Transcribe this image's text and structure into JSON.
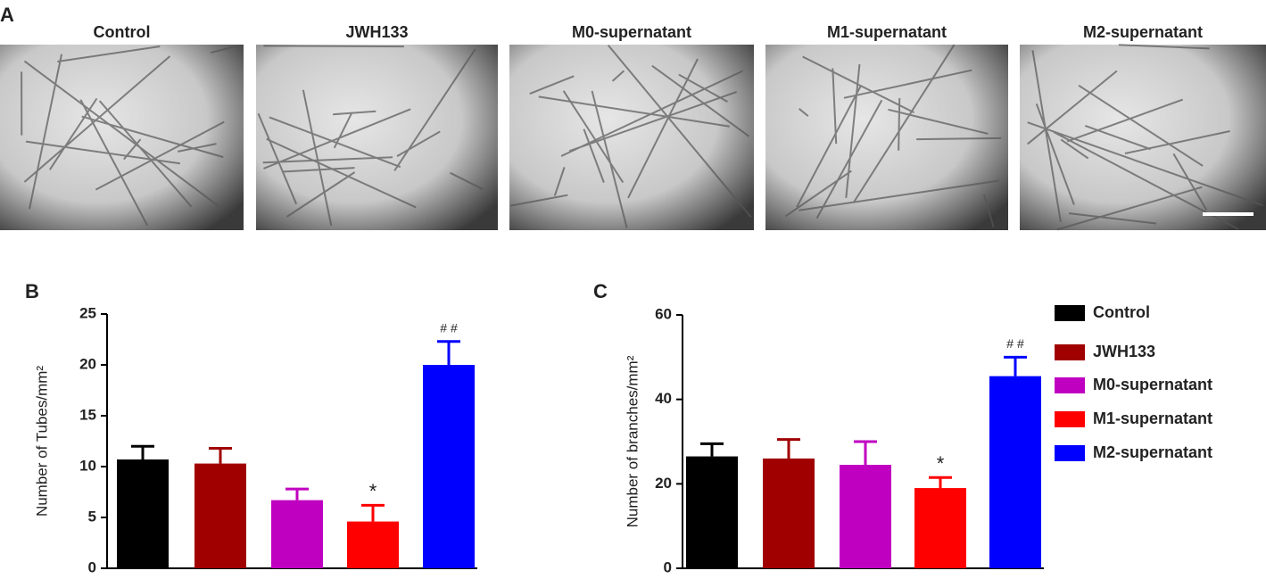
{
  "panel_labels": [
    "A",
    "B",
    "C"
  ],
  "images": {
    "labels": [
      "Control",
      "JWH133",
      "M0-supernatant",
      "M1-supernatant",
      "M2-supernatant"
    ]
  },
  "chart_data": [
    {
      "type": "bar",
      "ylabel": "Number of Tubes/mm²",
      "values": [
        10.7,
        10.3,
        6.7,
        4.6,
        20.0
      ],
      "errors": [
        1.3,
        1.5,
        1.1,
        1.6,
        2.3
      ],
      "value_annotations": [
        null,
        null,
        null,
        "*",
        "# #"
      ],
      "colors": [
        "#000000",
        "#a00000",
        "#c000c0",
        "#ff0000",
        "#0000ff"
      ],
      "ylim": [
        0,
        25
      ],
      "yticks": [
        0,
        5,
        10,
        15,
        20,
        25
      ]
    },
    {
      "type": "bar",
      "ylabel": "Number of branches/mm²",
      "categories": [
        "Control",
        "JWH133",
        "M0-supernatant",
        "M1-supernatant",
        "M2-supernatant"
      ],
      "values": [
        26.5,
        26,
        24.5,
        19,
        45.5
      ],
      "errors": [
        3,
        4.5,
        5.5,
        2.5,
        4.5
      ],
      "value_annotations": [
        null,
        null,
        null,
        "*",
        "# #"
      ],
      "colors": [
        "#000000",
        "#a00000",
        "#c000c0",
        "#ff0000",
        "#0000ff"
      ],
      "ylim": [
        0,
        60
      ],
      "yticks": [
        0,
        20,
        40,
        60
      ],
      "legend": "right"
    }
  ]
}
